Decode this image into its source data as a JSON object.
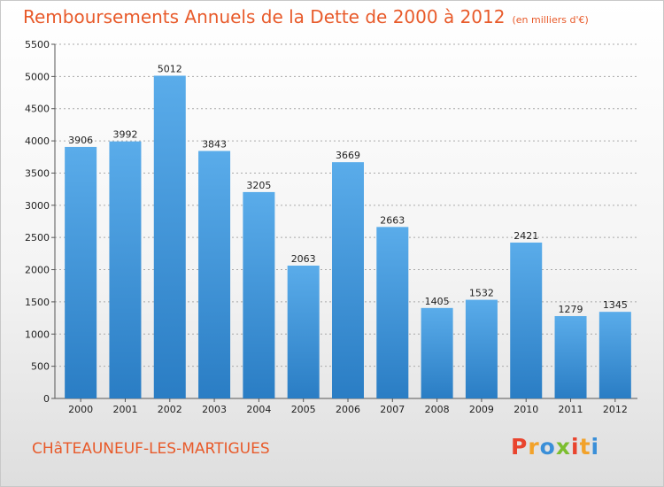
{
  "title": "Remboursements Annuels de la Dette de 2000 à 2012",
  "unit": "(en milliers d'€)",
  "city": "CHâTEAUNEUF-LES-MARTIGUES",
  "logo": {
    "letters": [
      "P",
      "r",
      "o",
      "x",
      "i",
      "t",
      "i"
    ],
    "colors": [
      "#e9442e",
      "#f2a22a",
      "#3a8fd8",
      "#7cbe2f",
      "#e9442e",
      "#f2a22a",
      "#3a8fd8"
    ]
  },
  "colors": {
    "bar_top": "#5aacea",
    "bar_bottom": "#2a7dc4",
    "accent": "#e85a2a",
    "grid": "#aaaaaa"
  },
  "chart_data": {
    "type": "bar",
    "categories": [
      "2000",
      "2001",
      "2002",
      "2003",
      "2004",
      "2005",
      "2006",
      "2007",
      "2008",
      "2009",
      "2010",
      "2011",
      "2012"
    ],
    "values": [
      3906,
      3992,
      5012,
      3843,
      3205,
      2063,
      3669,
      2663,
      1405,
      1532,
      2421,
      1279,
      1345
    ],
    "ylim": [
      0,
      5500
    ],
    "yticks": [
      "0",
      "500",
      "1000",
      "1500",
      "2000",
      "2500",
      "3000",
      "3500",
      "4000",
      "4500",
      "5000",
      "5500"
    ],
    "grid": true,
    "legend": false
  }
}
